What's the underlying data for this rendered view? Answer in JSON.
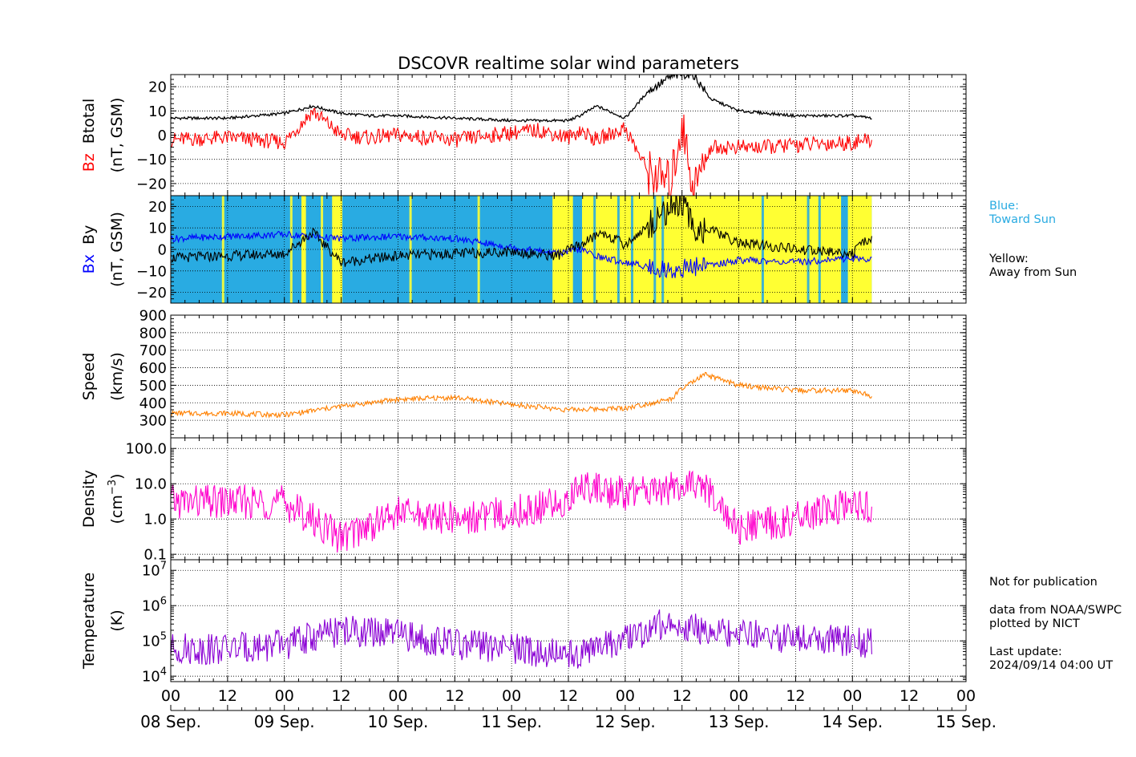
{
  "title": "DSCOVR realtime solar wind parameters",
  "colors": {
    "bz": "#ff0000",
    "btotal": "#000000",
    "bx": "#0000ff",
    "by": "#000000",
    "toward": "#29abe2",
    "away": "#ffff33",
    "speed": "#ff8000",
    "density": "#ff00cc",
    "temperature": "#8a00d4"
  },
  "x_ticks": [
    "00",
    "12",
    "00",
    "12",
    "00",
    "12",
    "00",
    "12",
    "00",
    "12",
    "00",
    "12",
    "00",
    "12",
    "00"
  ],
  "date_labels": [
    "08 Sep.",
    "09 Sep.",
    "10 Sep.",
    "11 Sep.",
    "12 Sep.",
    "13 Sep.",
    "14 Sep.",
    "15 Sep."
  ],
  "legend": {
    "blue_title": "Blue:",
    "blue_text": "Toward Sun",
    "yellow_title": "Yellow:",
    "yellow_text": "Away from Sun"
  },
  "notes": {
    "not_pub": "Not for publication",
    "data_from": "data from NOAA/SWPC",
    "plotted_by": "plotted by NICT",
    "last_update_label": "Last update:",
    "last_update": "2024/09/14 04:00 UT"
  },
  "chart_data": [
    {
      "type": "line",
      "panel": "magnetic_field",
      "ylabel_parts": [
        "Bz",
        "Btotal",
        "(nT, GSM)"
      ],
      "ylim": [
        -25,
        25
      ],
      "yticks": [
        20,
        10,
        0,
        -10,
        -20
      ],
      "yticklabels": [
        "20",
        "10",
        "0",
        "−10",
        "−20"
      ],
      "x_unit": "days since 08 Sep. 00 UT",
      "xlim": [
        0,
        7
      ],
      "series": [
        {
          "name": "Btotal",
          "x": [
            0,
            0.5,
            1,
            1.25,
            1.5,
            1.75,
            2,
            2.5,
            3,
            3.25,
            3.5,
            3.6,
            3.75,
            4,
            4.2,
            4.4,
            4.5,
            4.6,
            4.75,
            5,
            5.25,
            5.5,
            6,
            6.17
          ],
          "values": [
            7,
            7,
            9,
            12,
            9,
            8,
            8,
            7,
            6,
            6,
            6,
            8,
            12,
            7,
            18,
            24,
            25,
            25,
            15,
            10,
            9,
            8,
            8,
            7
          ]
        },
        {
          "name": "Bz",
          "x": [
            0,
            0.5,
            1,
            1.25,
            1.5,
            1.75,
            2,
            2.5,
            3,
            3.25,
            3.5,
            3.6,
            3.75,
            4,
            4.2,
            4.4,
            4.5,
            4.6,
            4.75,
            5,
            5.25,
            5.5,
            6,
            6.17
          ],
          "values": [
            -2,
            -1,
            -3,
            10,
            0,
            -1,
            0,
            -2,
            1,
            2,
            -1,
            2,
            -2,
            3,
            -15,
            -20,
            5,
            -22,
            -5,
            -5,
            -5,
            -4,
            -3,
            -2
          ]
        }
      ]
    },
    {
      "type": "line",
      "panel": "bx_by",
      "ylabel_parts": [
        "Bx",
        "By",
        "(nT, GSM)"
      ],
      "ylim": [
        -25,
        25
      ],
      "yticks": [
        20,
        10,
        0,
        -10,
        -20
      ],
      "yticklabels": [
        "20",
        "10",
        "0",
        "−10",
        "−20"
      ],
      "x_unit": "days since 08 Sep. 00 UT",
      "xlim": [
        0,
        7
      ],
      "background_away_intervals": [
        [
          1.15,
          1.19
        ],
        [
          1.42,
          1.51
        ],
        [
          3.36,
          3.54
        ],
        [
          3.62,
          5.9
        ],
        [
          5.96,
          6.17
        ]
      ],
      "series": [
        {
          "name": "Bx",
          "x": [
            0,
            0.5,
            1,
            1.5,
            2,
            2.5,
            3,
            3.4,
            3.6,
            3.8,
            4,
            4.4,
            4.6,
            4.8,
            5,
            5.5,
            6,
            6.17
          ],
          "values": [
            5,
            6,
            7,
            5,
            6,
            5,
            1,
            -2,
            0,
            -4,
            -6,
            -10,
            -8,
            -7,
            -5,
            -6,
            -4,
            -5
          ]
        },
        {
          "name": "By",
          "x": [
            0,
            0.5,
            1,
            1.25,
            1.5,
            2,
            2.5,
            3,
            3.4,
            3.6,
            3.8,
            4,
            4.4,
            4.5,
            4.6,
            4.8,
            5,
            5.5,
            6,
            6.17
          ],
          "values": [
            -4,
            -3,
            -2,
            8,
            -6,
            -3,
            -2,
            -1,
            -3,
            2,
            8,
            2,
            20,
            22,
            10,
            8,
            3,
            0,
            -2,
            6
          ]
        }
      ]
    },
    {
      "type": "line",
      "panel": "speed",
      "ylabel_parts": [
        "Speed",
        "(km/s)"
      ],
      "ylim": [
        200,
        900
      ],
      "yticks": [
        900,
        800,
        700,
        600,
        500,
        400,
        300
      ],
      "yticklabels": [
        "900",
        "800",
        "700",
        "600",
        "500",
        "400",
        "300"
      ],
      "x_unit": "days since 08 Sep. 00 UT",
      "xlim": [
        0,
        7
      ],
      "series": [
        {
          "name": "Speed",
          "x": [
            0,
            0.5,
            1,
            1.5,
            2,
            2.5,
            3,
            3.5,
            4,
            4.4,
            4.5,
            4.7,
            5,
            5.5,
            6,
            6.17
          ],
          "values": [
            340,
            340,
            330,
            380,
            420,
            430,
            390,
            360,
            370,
            420,
            480,
            560,
            500,
            470,
            470,
            440
          ]
        }
      ]
    },
    {
      "type": "line",
      "panel": "density",
      "yscale": "log",
      "ylabel_parts": [
        "Density",
        "(cm",
        "−3",
        ")"
      ],
      "ylim": [
        0.07,
        200
      ],
      "yticks": [
        100,
        10,
        1,
        0.1
      ],
      "yticklabels": [
        "100.0",
        "10.0",
        "1.0",
        "0.1"
      ],
      "x_unit": "days since 08 Sep. 00 UT",
      "xlim": [
        0,
        7
      ],
      "series": [
        {
          "name": "Density",
          "x": [
            0,
            0.5,
            1,
            1.5,
            2,
            2.5,
            3,
            3.5,
            3.6,
            4,
            4.4,
            4.7,
            5,
            5.5,
            5.9,
            6.17
          ],
          "values": [
            3,
            3,
            3,
            0.3,
            1.5,
            1,
            1.5,
            3,
            10,
            5,
            8,
            8,
            0.5,
            1,
            2,
            2
          ]
        }
      ]
    },
    {
      "type": "line",
      "panel": "temperature",
      "yscale": "log",
      "ylabel_parts": [
        "Temperature",
        "(K)"
      ],
      "ylim": [
        7000,
        20000000
      ],
      "yticks": [
        10000000,
        1000000,
        100000,
        10000
      ],
      "yticklabels_base": "10",
      "yticklabels_exp": [
        "7",
        "6",
        "5",
        "4"
      ],
      "x_unit": "days since 08 Sep. 00 UT",
      "xlim": [
        0,
        7
      ],
      "series": [
        {
          "name": "Temperature",
          "x": [
            0,
            0.5,
            1,
            1.5,
            2,
            2.5,
            3,
            3.5,
            4,
            4.4,
            4.5,
            5,
            5.5,
            6,
            6.17
          ],
          "values": [
            60000,
            60000,
            80000,
            200000,
            150000,
            80000,
            60000,
            40000,
            100000,
            400000,
            250000,
            150000,
            120000,
            100000,
            80000
          ]
        }
      ]
    }
  ]
}
